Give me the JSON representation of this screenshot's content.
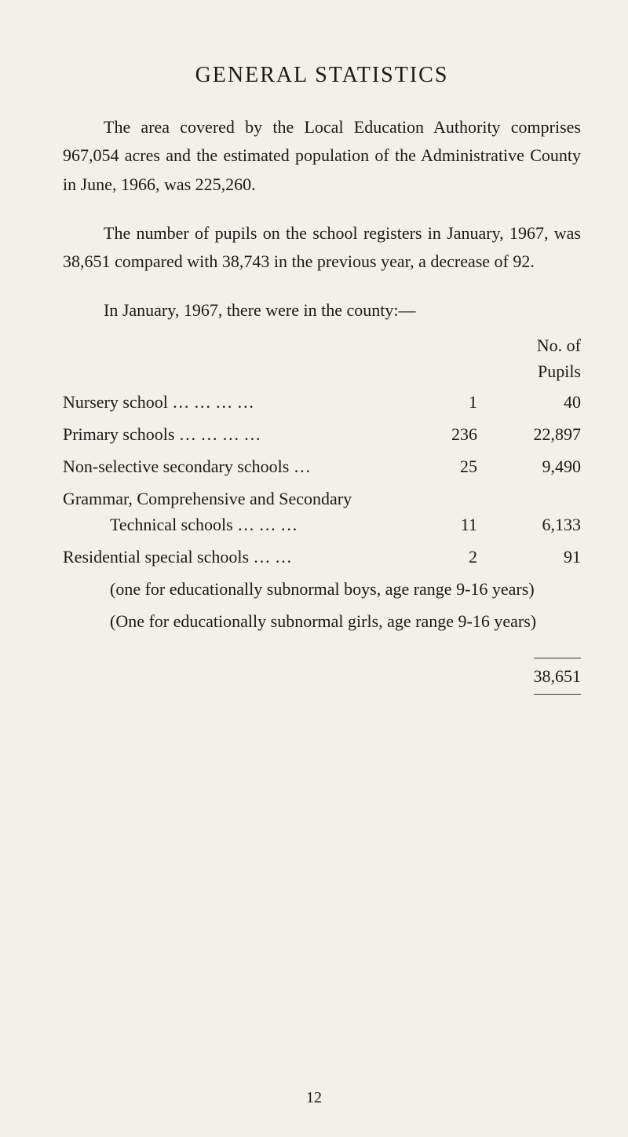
{
  "page": {
    "title": "GENERAL  STATISTICS",
    "paragraph1": "The area covered by the Local Education Authority comprises 967,054 acres and the estimated population of the Administrative County in June, 1966, was 225,260.",
    "paragraph2": "The number of pupils on the school registers in January, 1967, was 38,651 compared with 38,743 in the previous year, a decrease of 92.",
    "tableIntro": "In January, 1967, there were in the county:—",
    "headers": {
      "count": "",
      "pupilsLine1": "No. of",
      "pupilsLine2": "Pupils"
    },
    "rows": [
      {
        "label": "Nursery school    …        …        …        …",
        "count": "1",
        "pupils": "40",
        "sub": ""
      },
      {
        "label": "Primary schools   …        …        …        …",
        "count": "236",
        "pupils": "22,897",
        "sub": ""
      },
      {
        "label": "Non-selective secondary schools           …",
        "count": "25",
        "pupils": "9,490",
        "sub": ""
      },
      {
        "label": "Grammar, Comprehensive and Secondary",
        "labelLine2": "Technical schools   …        …        …",
        "count": "11",
        "pupils": "6,133",
        "sub": ""
      },
      {
        "label": "Residential special schools          …        …",
        "count": "2",
        "pupils": "91",
        "sub1": "(one for educationally subnormal boys, age range 9-16 years)",
        "sub2": "(One for educationally subnormal girls, age range 9-16 years)"
      }
    ],
    "total": "38,651",
    "pageNumber": "12"
  },
  "style": {
    "background": "#f2f0e9",
    "textColor": "#1a1a1a",
    "titleFontSize": 28,
    "bodyFontSize": 22
  }
}
